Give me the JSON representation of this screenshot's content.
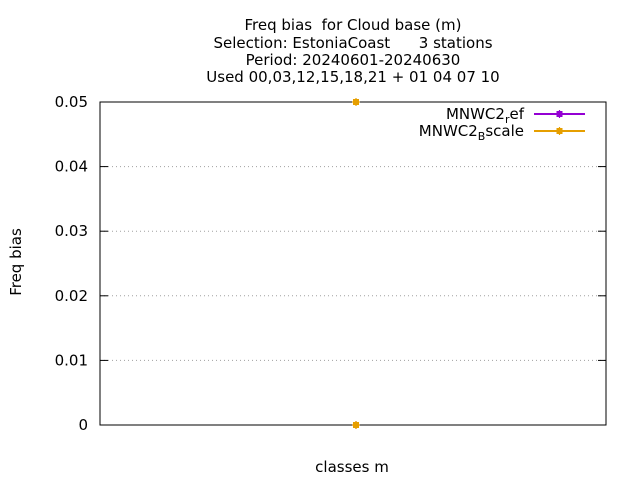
{
  "title_lines": [
    "Freq bias  for Cloud base (m)",
    "Selection: EstoniaCoast      3 stations",
    "Period: 20240601-20240630",
    "Used 00,03,12,15,18,21 + 01 04 07 10"
  ],
  "chart_data": {
    "type": "scatter",
    "xlabel": "classes m",
    "ylabel": "Freq bias",
    "ylim": [
      0,
      0.05
    ],
    "yticks": [
      "0",
      "0.01",
      "0.02",
      "0.03",
      "0.04",
      "0.05"
    ],
    "grid": true,
    "legend_position": "top-right",
    "series": [
      {
        "name": "MNWC2_ref",
        "label_base": "MNWC2",
        "label_sub": "r",
        "label_rest": "ef",
        "color": "#9400d3",
        "points": [
          {
            "x": "",
            "y": 0
          }
        ]
      },
      {
        "name": "MNWC2_Bscale",
        "label_base": "MNWC2",
        "label_sub": "B",
        "label_rest": "scale",
        "color": "#e69f00",
        "points": [
          {
            "x": "",
            "y": 0.05
          },
          {
            "x": "",
            "y": 0
          }
        ]
      }
    ]
  }
}
